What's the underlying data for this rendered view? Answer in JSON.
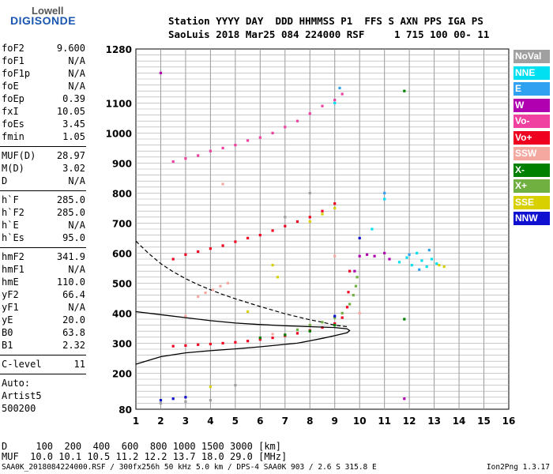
{
  "logo": {
    "line1": "Lowell",
    "line2": "DIGISONDE"
  },
  "header": {
    "line1": "Station YYYY DAY  DDD HHMMSS P1  FFS S AXN PPS IGA PS",
    "line2": "SaoLuis 2018 Mar25 084 224000 RSF     1 715 100 00- 11"
  },
  "params": {
    "group1": [
      [
        "foF2",
        "9.600"
      ],
      [
        "foF1",
        "N/A"
      ],
      [
        "foF1p",
        "N/A"
      ],
      [
        "foE",
        "N/A"
      ],
      [
        "foEp",
        "0.39"
      ],
      [
        "fxI",
        "10.05"
      ],
      [
        "foEs",
        "3.45"
      ],
      [
        "fmin",
        "1.05"
      ]
    ],
    "group2": [
      [
        "MUF(D)",
        "28.97"
      ],
      [
        "M(D)",
        "3.02"
      ],
      [
        "D",
        "N/A"
      ]
    ],
    "group3": [
      [
        "h`F",
        "285.0"
      ],
      [
        "h`F2",
        "285.0"
      ],
      [
        "h`E",
        "N/A"
      ],
      [
        "h`Es",
        "95.0"
      ]
    ],
    "group4": [
      [
        "hmF2",
        "341.9"
      ],
      [
        "hmF1",
        "N/A"
      ],
      [
        "hmE",
        "110.0"
      ],
      [
        "yF2",
        "66.4"
      ],
      [
        "yF1",
        "N/A"
      ],
      [
        "yE",
        "20.0"
      ],
      [
        "B0",
        "63.8"
      ],
      [
        "B1",
        "2.32"
      ]
    ],
    "group5": [
      [
        "C-level",
        "11"
      ]
    ],
    "auto": [
      "Auto:",
      "Artist5",
      "500200"
    ]
  },
  "legend": [
    {
      "label": "NoVal",
      "color": "#a0a0a0"
    },
    {
      "label": "NNE",
      "color": "#00e0f0"
    },
    {
      "label": "E",
      "color": "#30a0f0"
    },
    {
      "label": "W",
      "color": "#b000b0"
    },
    {
      "label": "Vo-",
      "color": "#f040a0"
    },
    {
      "label": "Vo+",
      "color": "#f00020"
    },
    {
      "label": "SSW",
      "color": "#f4a8a0"
    },
    {
      "label": "X-",
      "color": "#008000"
    },
    {
      "label": "X+",
      "color": "#70b040"
    },
    {
      "label": "SSE",
      "color": "#d8d000"
    },
    {
      "label": "NNW",
      "color": "#1010d0"
    }
  ],
  "footer": {
    "d_line": "D     100  200  400  600  800 1000 1500 3000 [km]",
    "muf_line": "MUF  10.0 10.1 10.5 11.2 12.2 13.7 18.0 29.0 [MHz]",
    "file_line": "SAA0K_2018084224000.RSF / 300fx256h 50 kHz 5.0 km / DPS-4 SAA0K 903 / 2.6 S 315.8 E",
    "version": "Ion2Png 1.3.17"
  },
  "chart_data": {
    "type": "scatter",
    "title": "",
    "xlabel": "",
    "ylabel": "",
    "xlim": [
      1,
      16
    ],
    "ylim": [
      80,
      1280
    ],
    "x_ticks": [
      1,
      2,
      3,
      4,
      5,
      6,
      7,
      8,
      9,
      10,
      11,
      12,
      13,
      14,
      15,
      16
    ],
    "y_ticks": [
      80,
      200,
      300,
      400,
      500,
      600,
      700,
      800,
      900,
      1000,
      1100,
      1280
    ],
    "grid": true,
    "series": [
      {
        "name": "Vo+",
        "color": "#f00020",
        "points": [
          [
            2.5,
            290
          ],
          [
            3,
            292
          ],
          [
            3.5,
            295
          ],
          [
            4,
            297
          ],
          [
            4.5,
            300
          ],
          [
            5,
            303
          ],
          [
            5.5,
            307
          ],
          [
            6,
            312
          ],
          [
            6.5,
            318
          ],
          [
            7,
            325
          ],
          [
            7.5,
            333
          ],
          [
            8,
            342
          ],
          [
            8.5,
            352
          ],
          [
            9,
            365
          ],
          [
            9.3,
            385
          ],
          [
            9.5,
            420
          ],
          [
            9.55,
            470
          ],
          [
            9.6,
            540
          ]
        ]
      },
      {
        "name": "Vo+",
        "color": "#f00020",
        "points": [
          [
            2.5,
            580
          ],
          [
            3,
            595
          ],
          [
            3.5,
            605
          ],
          [
            4,
            615
          ],
          [
            4.5,
            625
          ],
          [
            5,
            638
          ],
          [
            5.5,
            650
          ],
          [
            6,
            660
          ],
          [
            6.5,
            675
          ],
          [
            7,
            690
          ],
          [
            7.5,
            705
          ],
          [
            8,
            720
          ],
          [
            8.5,
            740
          ],
          [
            9,
            765
          ]
        ]
      },
      {
        "name": "Vo-",
        "color": "#f040a0",
        "points": [
          [
            2.5,
            905
          ],
          [
            3,
            915
          ],
          [
            3.5,
            925
          ],
          [
            4,
            940
          ],
          [
            4.5,
            950
          ],
          [
            5,
            960
          ],
          [
            5.5,
            975
          ],
          [
            6,
            985
          ],
          [
            6.5,
            1000
          ],
          [
            7,
            1020
          ],
          [
            7.5,
            1040
          ],
          [
            8,
            1065
          ],
          [
            8.5,
            1090
          ],
          [
            9,
            1110
          ],
          [
            9.3,
            1130
          ]
        ]
      },
      {
        "name": "SSW",
        "color": "#f4a8a0",
        "points": [
          [
            3.5,
            455
          ],
          [
            3.8,
            468
          ],
          [
            4.1,
            478
          ],
          [
            4.4,
            490
          ],
          [
            4.7,
            500
          ],
          [
            3,
            390
          ],
          [
            4.5,
            830
          ],
          [
            6.5,
            330
          ],
          [
            9,
            590
          ],
          [
            10,
            400
          ]
        ]
      },
      {
        "name": "X+",
        "color": "#70b040",
        "points": [
          [
            7.5,
            345
          ],
          [
            8,
            360
          ],
          [
            8.5,
            370
          ],
          [
            9,
            385
          ],
          [
            9.3,
            400
          ],
          [
            9.6,
            430
          ],
          [
            9.75,
            460
          ],
          [
            9.85,
            490
          ],
          [
            9.9,
            520
          ]
        ]
      },
      {
        "name": "X-",
        "color": "#008000",
        "points": [
          [
            6,
            318
          ],
          [
            7,
            328
          ],
          [
            8,
            340
          ],
          [
            9,
            360
          ],
          [
            11.8,
            1140
          ],
          [
            11.8,
            380
          ]
        ]
      },
      {
        "name": "W",
        "color": "#b000b0",
        "points": [
          [
            10,
            590
          ],
          [
            10.3,
            595
          ],
          [
            10.6,
            590
          ],
          [
            11,
            600
          ],
          [
            11.2,
            580
          ],
          [
            9.8,
            540
          ],
          [
            2,
            1200
          ],
          [
            11.8,
            115
          ]
        ]
      },
      {
        "name": "NNE",
        "color": "#00e0f0",
        "points": [
          [
            11.6,
            570
          ],
          [
            11.9,
            585
          ],
          [
            12.1,
            560
          ],
          [
            12.3,
            600
          ],
          [
            12.5,
            575
          ],
          [
            12.7,
            555
          ],
          [
            12.9,
            580
          ],
          [
            13.1,
            565
          ],
          [
            10.5,
            680
          ],
          [
            11,
            780
          ],
          [
            9,
            1100
          ]
        ]
      },
      {
        "name": "E",
        "color": "#30a0f0",
        "points": [
          [
            12,
            595
          ],
          [
            12.4,
            545
          ],
          [
            12.8,
            610
          ],
          [
            11,
            800
          ],
          [
            9.2,
            1150
          ]
        ]
      },
      {
        "name": "SSE",
        "color": "#d8d000",
        "points": [
          [
            13.2,
            560
          ],
          [
            13.4,
            555
          ],
          [
            8,
            705
          ],
          [
            8.5,
            730
          ],
          [
            9,
            750
          ],
          [
            6.5,
            560
          ],
          [
            6.7,
            520
          ],
          [
            5.5,
            405
          ],
          [
            4,
            155
          ]
        ]
      },
      {
        "name": "NNW",
        "color": "#1010d0",
        "points": [
          [
            2,
            110
          ],
          [
            2.5,
            115
          ],
          [
            3,
            120
          ],
          [
            9,
            390
          ],
          [
            10,
            650
          ]
        ]
      },
      {
        "name": "NoVal",
        "color": "#a0a0a0",
        "points": [
          [
            2,
            100
          ],
          [
            3,
            105
          ],
          [
            4,
            110
          ],
          [
            5,
            160
          ],
          [
            7,
            720
          ],
          [
            8,
            800
          ]
        ]
      }
    ],
    "trace_curve": [
      [
        1,
        230
      ],
      [
        2,
        255
      ],
      [
        3,
        268
      ],
      [
        4,
        275
      ],
      [
        5,
        281
      ],
      [
        6,
        288
      ],
      [
        7,
        296
      ],
      [
        7.5,
        300
      ],
      [
        8,
        308
      ],
      [
        8.5,
        316
      ],
      [
        9,
        325
      ],
      [
        9.5,
        335
      ],
      [
        9.6,
        341.9
      ],
      [
        9.5,
        348
      ],
      [
        9,
        352
      ],
      [
        8,
        355
      ],
      [
        7,
        358
      ],
      [
        6,
        362
      ],
      [
        5,
        367
      ],
      [
        4,
        375
      ],
      [
        3,
        385
      ],
      [
        2,
        395
      ],
      [
        1,
        405
      ]
    ],
    "dashed_curve": [
      [
        1,
        640
      ],
      [
        1.5,
        600
      ],
      [
        2,
        565
      ],
      [
        2.5,
        538
      ],
      [
        3,
        515
      ],
      [
        3.5,
        495
      ],
      [
        4,
        478
      ],
      [
        4.5,
        462
      ],
      [
        5,
        448
      ],
      [
        5.5,
        435
      ],
      [
        6,
        422
      ],
      [
        6.5,
        410
      ],
      [
        7,
        398
      ],
      [
        7.5,
        388
      ],
      [
        8,
        378
      ],
      [
        8.5,
        370
      ],
      [
        9,
        360
      ],
      [
        9.5,
        355
      ]
    ]
  }
}
